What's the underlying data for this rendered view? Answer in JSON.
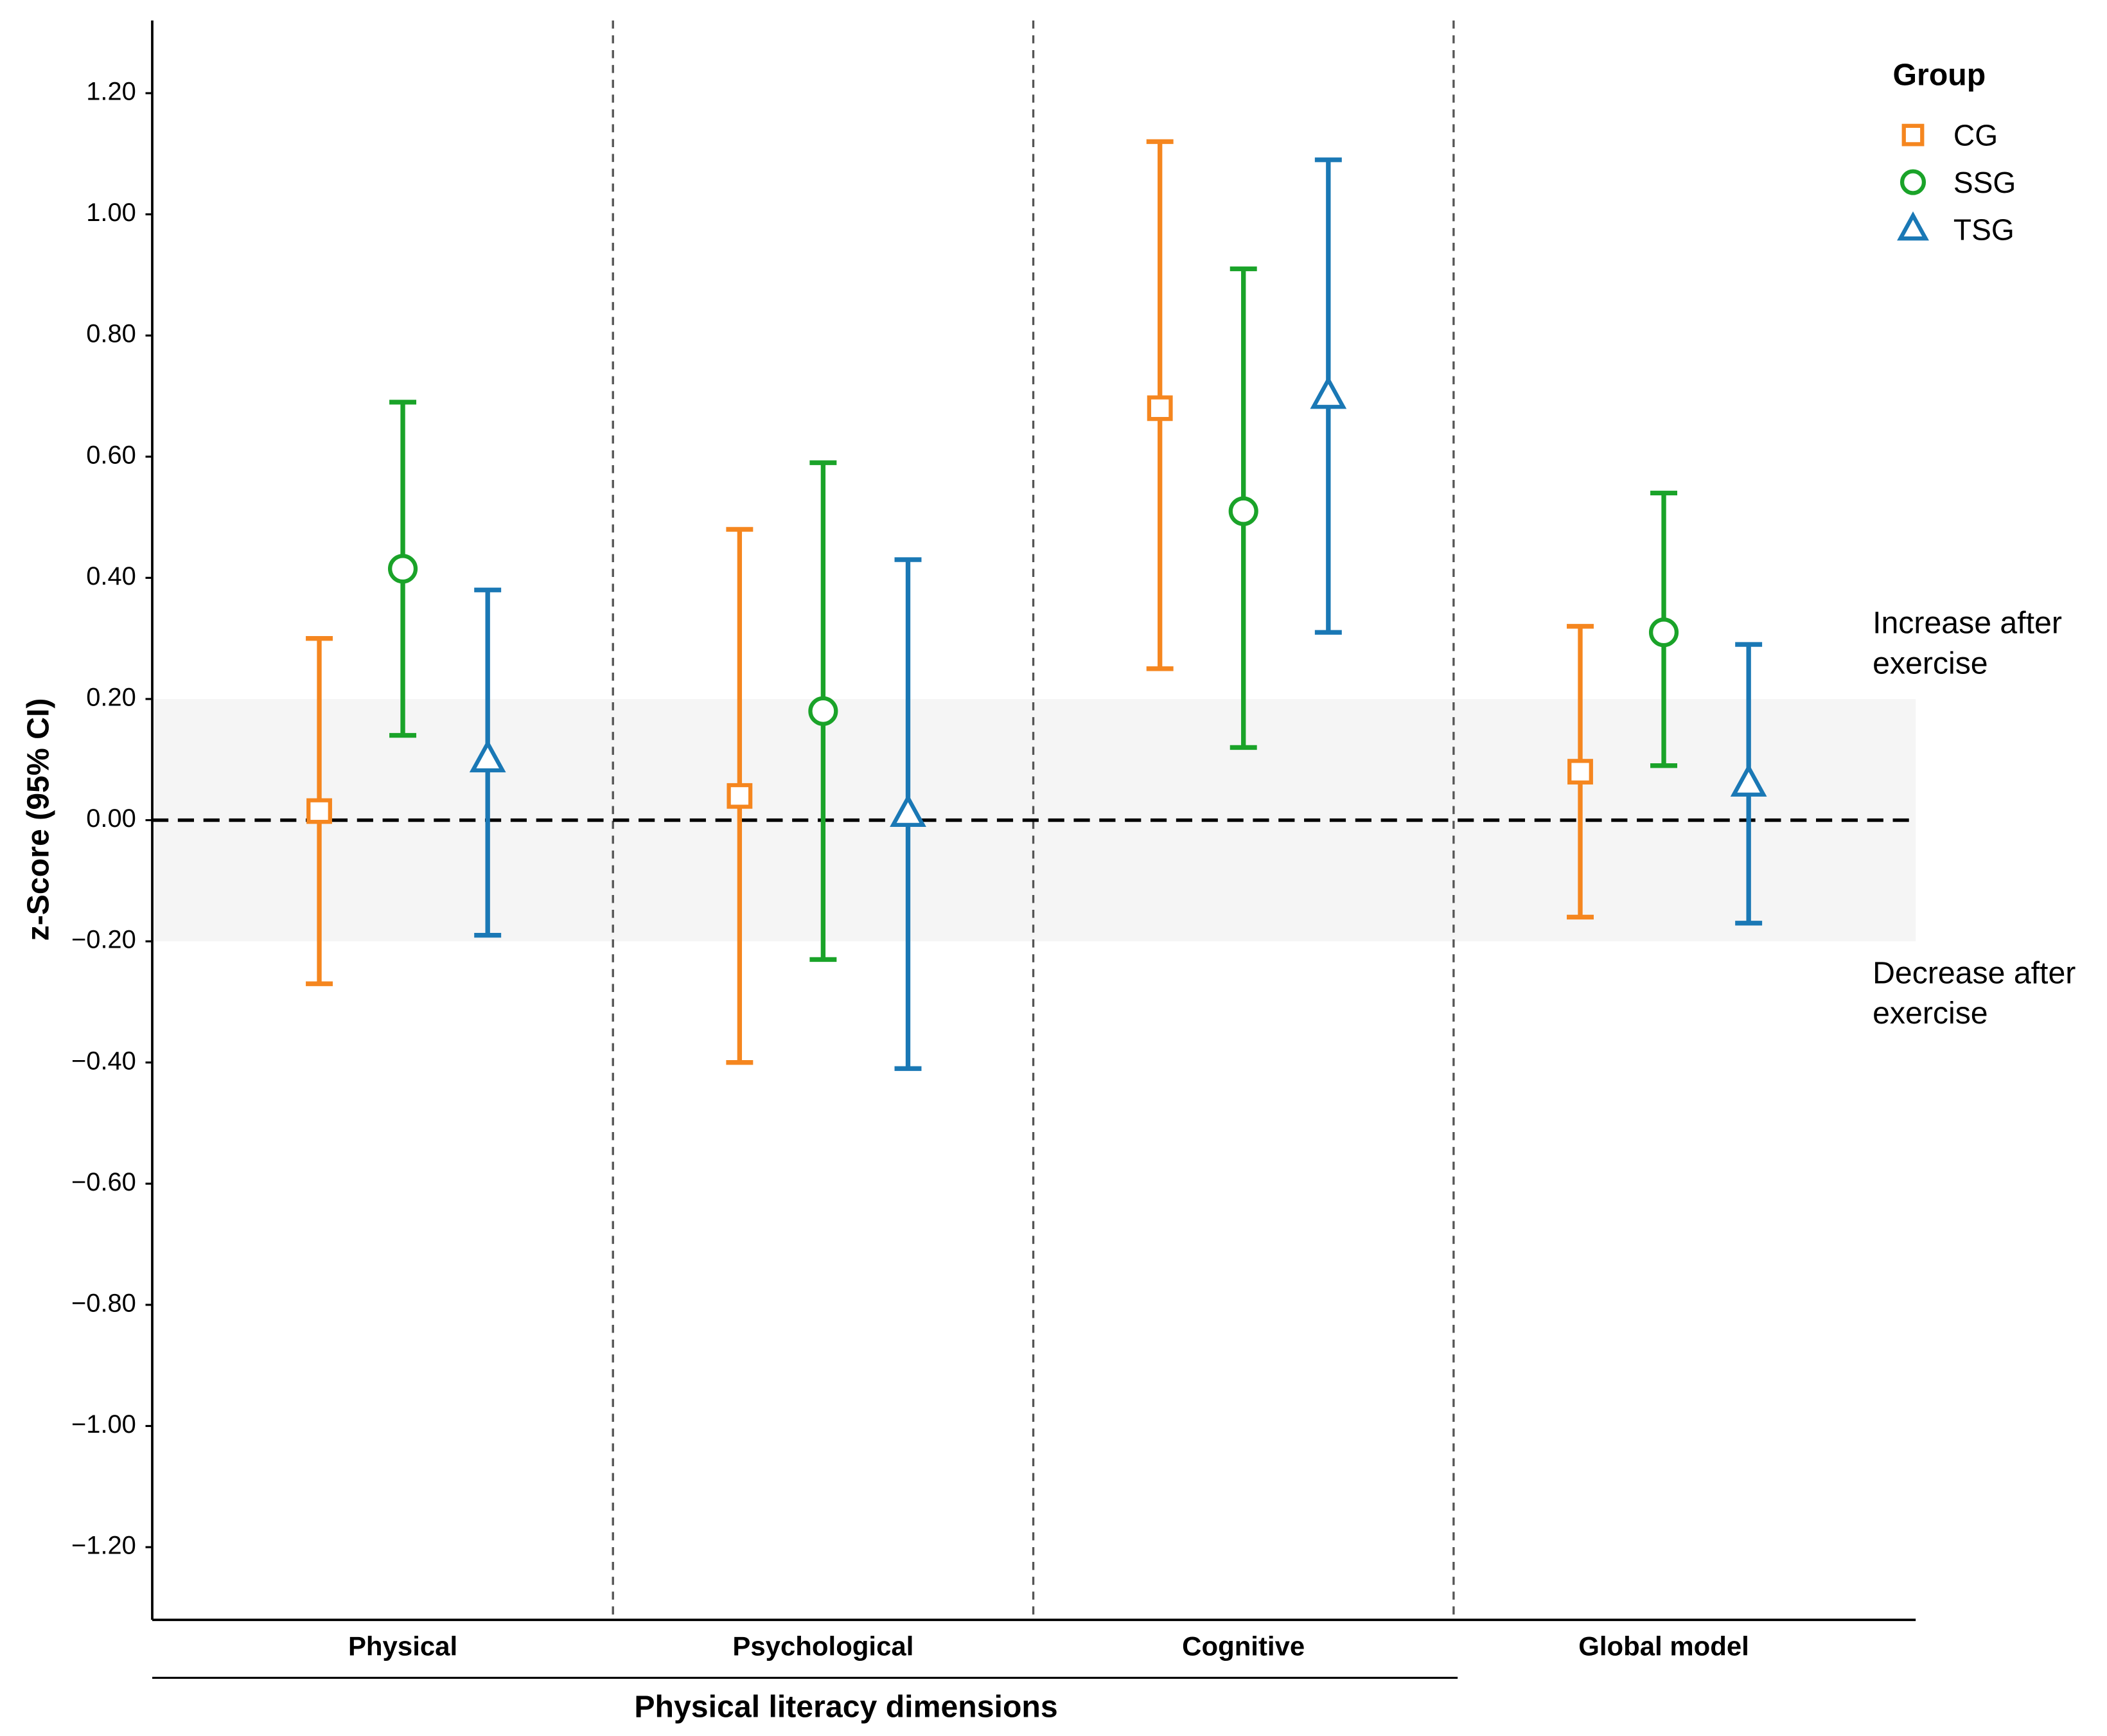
{
  "chart_data": {
    "type": "errorbar",
    "xlabel": "Physical literacy dimensions",
    "ylabel": "z-Score (95% CI)",
    "categories": [
      "Physical",
      "Psychological",
      "Cognitive",
      "Global model"
    ],
    "legend_title": "Group",
    "legend_position": "top-right",
    "series": [
      {
        "name": "CG",
        "color": "#f5861f",
        "marker": "square",
        "values": [
          0.015,
          0.04,
          0.68,
          0.08
        ],
        "lower": [
          -0.27,
          -0.4,
          0.25,
          -0.16
        ],
        "upper": [
          0.3,
          0.48,
          1.12,
          0.32
        ]
      },
      {
        "name": "SSG",
        "color": "#1aa329",
        "marker": "circle",
        "values": [
          0.415,
          0.18,
          0.51,
          0.31
        ],
        "lower": [
          0.14,
          -0.23,
          0.12,
          0.09
        ],
        "upper": [
          0.69,
          0.59,
          0.91,
          0.54
        ]
      },
      {
        "name": "TSG",
        "color": "#1a78b5",
        "marker": "triangle",
        "values": [
          0.1,
          0.01,
          0.7,
          0.06
        ],
        "lower": [
          -0.19,
          -0.41,
          0.31,
          -0.17
        ],
        "upper": [
          0.38,
          0.43,
          1.09,
          0.29
        ]
      }
    ],
    "ylim": [
      -1.32,
      1.32
    ],
    "yticks": [
      {
        "value": -1.2,
        "label": "−1.20"
      },
      {
        "value": -1.0,
        "label": "−1.00"
      },
      {
        "value": -0.8,
        "label": "−0.80"
      },
      {
        "value": -0.6,
        "label": "−0.60"
      },
      {
        "value": -0.4,
        "label": "−0.40"
      },
      {
        "value": -0.2,
        "label": "−0.20"
      },
      {
        "value": 0,
        "label": "0.00"
      },
      {
        "value": 0.2,
        "label": "0.20"
      },
      {
        "value": 0.4,
        "label": "0.40"
      },
      {
        "value": 0.6,
        "label": "0.60"
      },
      {
        "value": 0.8,
        "label": "0.80"
      },
      {
        "value": 1.0,
        "label": "1.00"
      },
      {
        "value": 1.2,
        "label": "1.20"
      }
    ],
    "reference_line": 0,
    "band": [
      -0.2,
      0.2
    ],
    "annotations": [
      [
        "Increase after",
        "exercise"
      ],
      [
        "Decrease after",
        "exercise"
      ]
    ]
  }
}
